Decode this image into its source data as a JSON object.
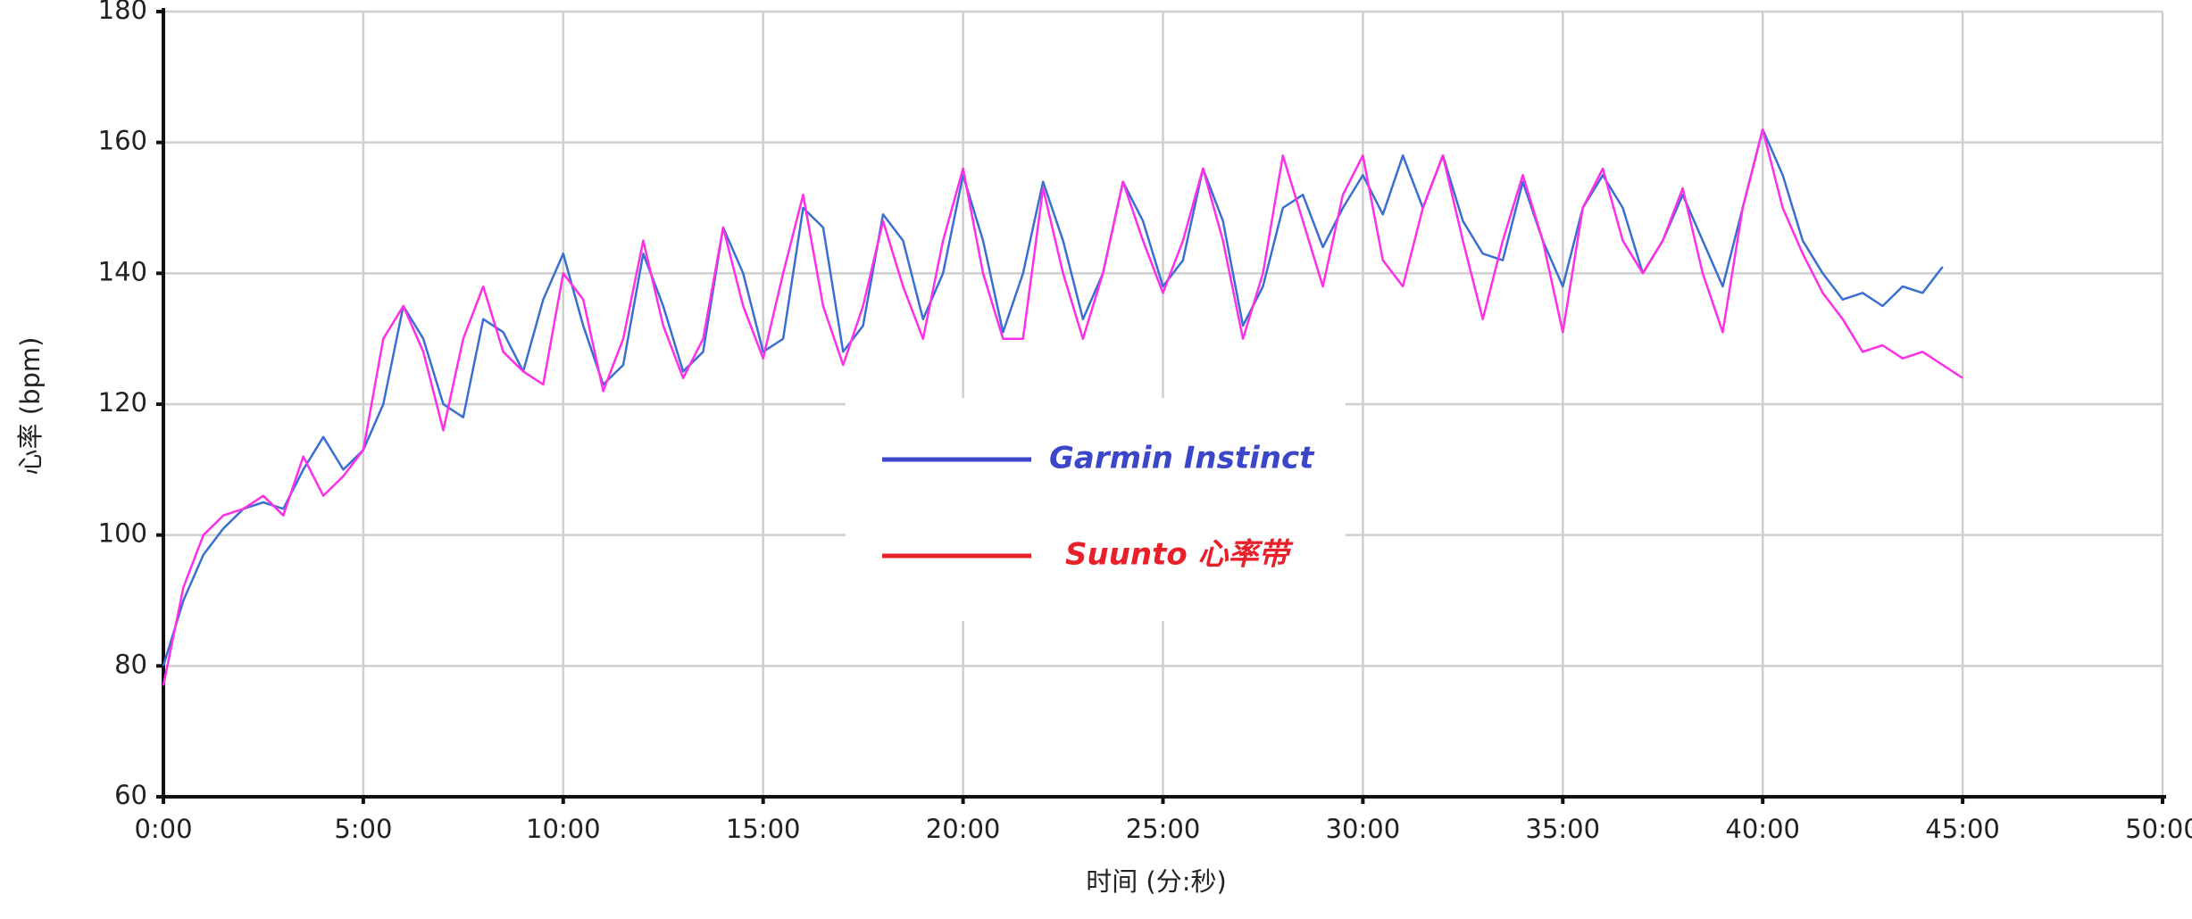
{
  "chart_data": {
    "type": "line",
    "y_label": "心率 (bpm)",
    "x_label": "时间 (分:秒)",
    "xlim": [
      0,
      50
    ],
    "ylim": [
      60,
      180
    ],
    "yticks": [
      60,
      80,
      100,
      120,
      140,
      160,
      180
    ],
    "xticks": [
      {
        "value": 0,
        "label": "0:00"
      },
      {
        "value": 5,
        "label": "5:00"
      },
      {
        "value": 10,
        "label": "10:00"
      },
      {
        "value": 15,
        "label": "15:00"
      },
      {
        "value": 20,
        "label": "20:00"
      },
      {
        "value": 25,
        "label": "25:00"
      },
      {
        "value": 30,
        "label": "30:00"
      },
      {
        "value": 35,
        "label": "35:00"
      },
      {
        "value": 40,
        "label": "40:00"
      },
      {
        "value": 45,
        "label": "45:00"
      },
      {
        "value": 50,
        "label": "50:00"
      }
    ],
    "grid": true,
    "x": [
      0,
      0.5,
      1,
      1.5,
      2,
      2.5,
      3,
      3.5,
      4,
      4.5,
      5,
      5.5,
      6,
      6.5,
      7,
      7.5,
      8,
      8.5,
      9,
      9.5,
      10,
      10.5,
      11,
      11.5,
      12,
      12.5,
      13,
      13.5,
      14,
      14.5,
      15,
      15.5,
      16,
      16.5,
      17,
      17.5,
      18,
      18.5,
      19,
      19.5,
      20,
      20.5,
      21,
      21.5,
      22,
      22.5,
      23,
      23.5,
      24,
      24.5,
      25,
      25.5,
      26,
      26.5,
      27,
      27.5,
      28,
      28.5,
      29,
      29.5,
      30,
      30.5,
      31,
      31.5,
      32,
      32.5,
      33,
      33.5,
      34,
      34.5,
      35,
      35.5,
      36,
      36.5,
      37,
      37.5,
      38,
      38.5,
      39,
      39.5,
      40,
      40.5,
      41,
      41.5,
      42,
      42.5,
      43,
      43.5,
      44,
      44.5,
      45
    ],
    "series": [
      {
        "name": "Garmin Instinct",
        "color": "#3a6fd0",
        "legend_color": "#3c46c8",
        "values": [
          80,
          90,
          97,
          101,
          104,
          105,
          104,
          110,
          115,
          110,
          113,
          120,
          135,
          130,
          120,
          118,
          133,
          131,
          125,
          136,
          143,
          132,
          123,
          126,
          143,
          135,
          125,
          128,
          147,
          140,
          128,
          130,
          150,
          147,
          128,
          132,
          149,
          145,
          133,
          140,
          155,
          145,
          131,
          140,
          154,
          145,
          133,
          140,
          154,
          148,
          138,
          142,
          156,
          148,
          132,
          138,
          150,
          152,
          144,
          150,
          155,
          149,
          158,
          150,
          158,
          148,
          143,
          142,
          154,
          145,
          138,
          150,
          155,
          150,
          140,
          145,
          152,
          145,
          138,
          150,
          162,
          155,
          145,
          140,
          136,
          137,
          135,
          138,
          137,
          141,
          null
        ]
      },
      {
        "name": "Suunto 心率带",
        "color": "#ff2ee8",
        "legend_color": "#e8202a",
        "values": [
          77,
          92,
          100,
          103,
          104,
          106,
          103,
          112,
          106,
          109,
          113,
          130,
          135,
          128,
          116,
          130,
          138,
          128,
          125,
          123,
          140,
          136,
          122,
          130,
          145,
          132,
          124,
          130,
          147,
          135,
          127,
          140,
          152,
          135,
          126,
          135,
          148,
          138,
          130,
          145,
          156,
          140,
          130,
          130,
          153,
          140,
          130,
          140,
          154,
          145,
          137,
          145,
          156,
          145,
          130,
          140,
          158,
          148,
          138,
          152,
          158,
          142,
          138,
          150,
          158,
          145,
          133,
          145,
          155,
          145,
          131,
          150,
          156,
          145,
          140,
          145,
          153,
          140,
          131,
          150,
          162,
          150,
          143,
          137,
          133,
          128,
          129,
          127,
          128,
          126,
          124
        ]
      }
    ]
  }
}
